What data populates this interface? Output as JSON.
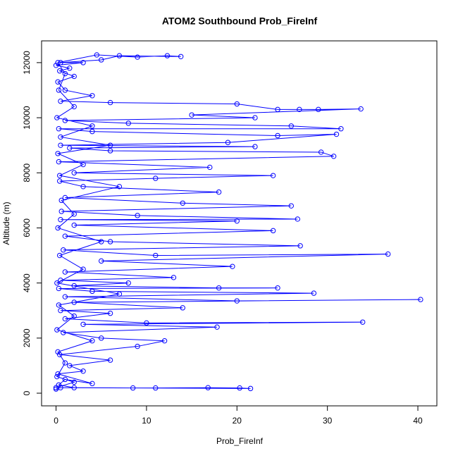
{
  "chart_data": {
    "type": "line",
    "title": "ATOM2 Southbound Prob_FireInf",
    "x_label": "Prob_FireInf",
    "y_label": "Altitude (m)",
    "color": "#0000ff",
    "marker": "circle",
    "xlim": [
      -1.6,
      42.1
    ],
    "ylim": [
      -460,
      12790
    ],
    "xticks": [
      0,
      10,
      20,
      30,
      40
    ],
    "yticks": [
      0,
      2000,
      4000,
      6000,
      8000,
      10000,
      12000
    ],
    "x": [
      0,
      0.5,
      21.5,
      20.3,
      16.8,
      11,
      8.5,
      2,
      0.3,
      1,
      4,
      0.2,
      3,
      1.5,
      6,
      0.4,
      9,
      12,
      5,
      0.8,
      17.8,
      3,
      33.9,
      10,
      1,
      6,
      0.5,
      14,
      2,
      40.3,
      20,
      1,
      28.5,
      4,
      0.3,
      24.5,
      18,
      2,
      8,
      0.5,
      13,
      1,
      19.5,
      5,
      36.7,
      11,
      0.8,
      27,
      6,
      1,
      24,
      2,
      20,
      0.5,
      26.7,
      9,
      0.6,
      26,
      14,
      1,
      18,
      3,
      0.4,
      11,
      24,
      2,
      17,
      0.3,
      30.7,
      29.3,
      6,
      1.5,
      22,
      0.5,
      19,
      31,
      24.5,
      4,
      0.3,
      31.5,
      26,
      8,
      1,
      22,
      15,
      33.7,
      29,
      26.9,
      24.5,
      20,
      6,
      0.5,
      4,
      1,
      0.2,
      2,
      0.4,
      1.5,
      0,
      3,
      0.5,
      5,
      7,
      13.8,
      12.3,
      9,
      4.5,
      0.2,
      1,
      0.3,
      2,
      0.1,
      4,
      0.5,
      6,
      0.2,
      3,
      0.4,
      7,
      0.6,
      2,
      0.2,
      5,
      0.4,
      3,
      0.1,
      7,
      0.3,
      2,
      0.1,
      4,
      0.2,
      1,
      0.1,
      2,
      0
    ],
    "values": [
      150,
      200,
      170,
      190,
      200,
      190,
      190,
      200,
      300,
      500,
      350,
      700,
      800,
      1000,
      1200,
      1400,
      1700,
      1900,
      2000,
      2200,
      2400,
      2500,
      2580,
      2550,
      2700,
      2900,
      3000,
      3100,
      3300,
      3400,
      3350,
      3500,
      3630,
      3700,
      3800,
      3820,
      3820,
      3900,
      4000,
      4100,
      4200,
      4400,
      4600,
      4800,
      5050,
      5000,
      5200,
      5350,
      5500,
      5700,
      5900,
      6100,
      6250,
      6300,
      6320,
      6450,
      6600,
      6800,
      6900,
      7100,
      7300,
      7500,
      7700,
      7800,
      7900,
      8000,
      8200,
      8400,
      8600,
      8750,
      8800,
      8900,
      8950,
      9000,
      9100,
      9400,
      9350,
      9500,
      9600,
      9600,
      9700,
      9800,
      9900,
      10000,
      10100,
      10320,
      10300,
      10300,
      10300,
      10500,
      10550,
      10600,
      10800,
      11000,
      11300,
      11500,
      11700,
      11800,
      11900,
      12000,
      12000,
      12100,
      12250,
      12220,
      12250,
      12200,
      12280,
      12000,
      11600,
      11000,
      10400,
      10000,
      9700,
      9300,
      9000,
      8700,
      8300,
      7900,
      7500,
      7000,
      6500,
      6000,
      5500,
      5000,
      4500,
      4000,
      3600,
      3200,
      2800,
      2300,
      1900,
      1500,
      1100,
      600,
      400,
      200
    ]
  }
}
